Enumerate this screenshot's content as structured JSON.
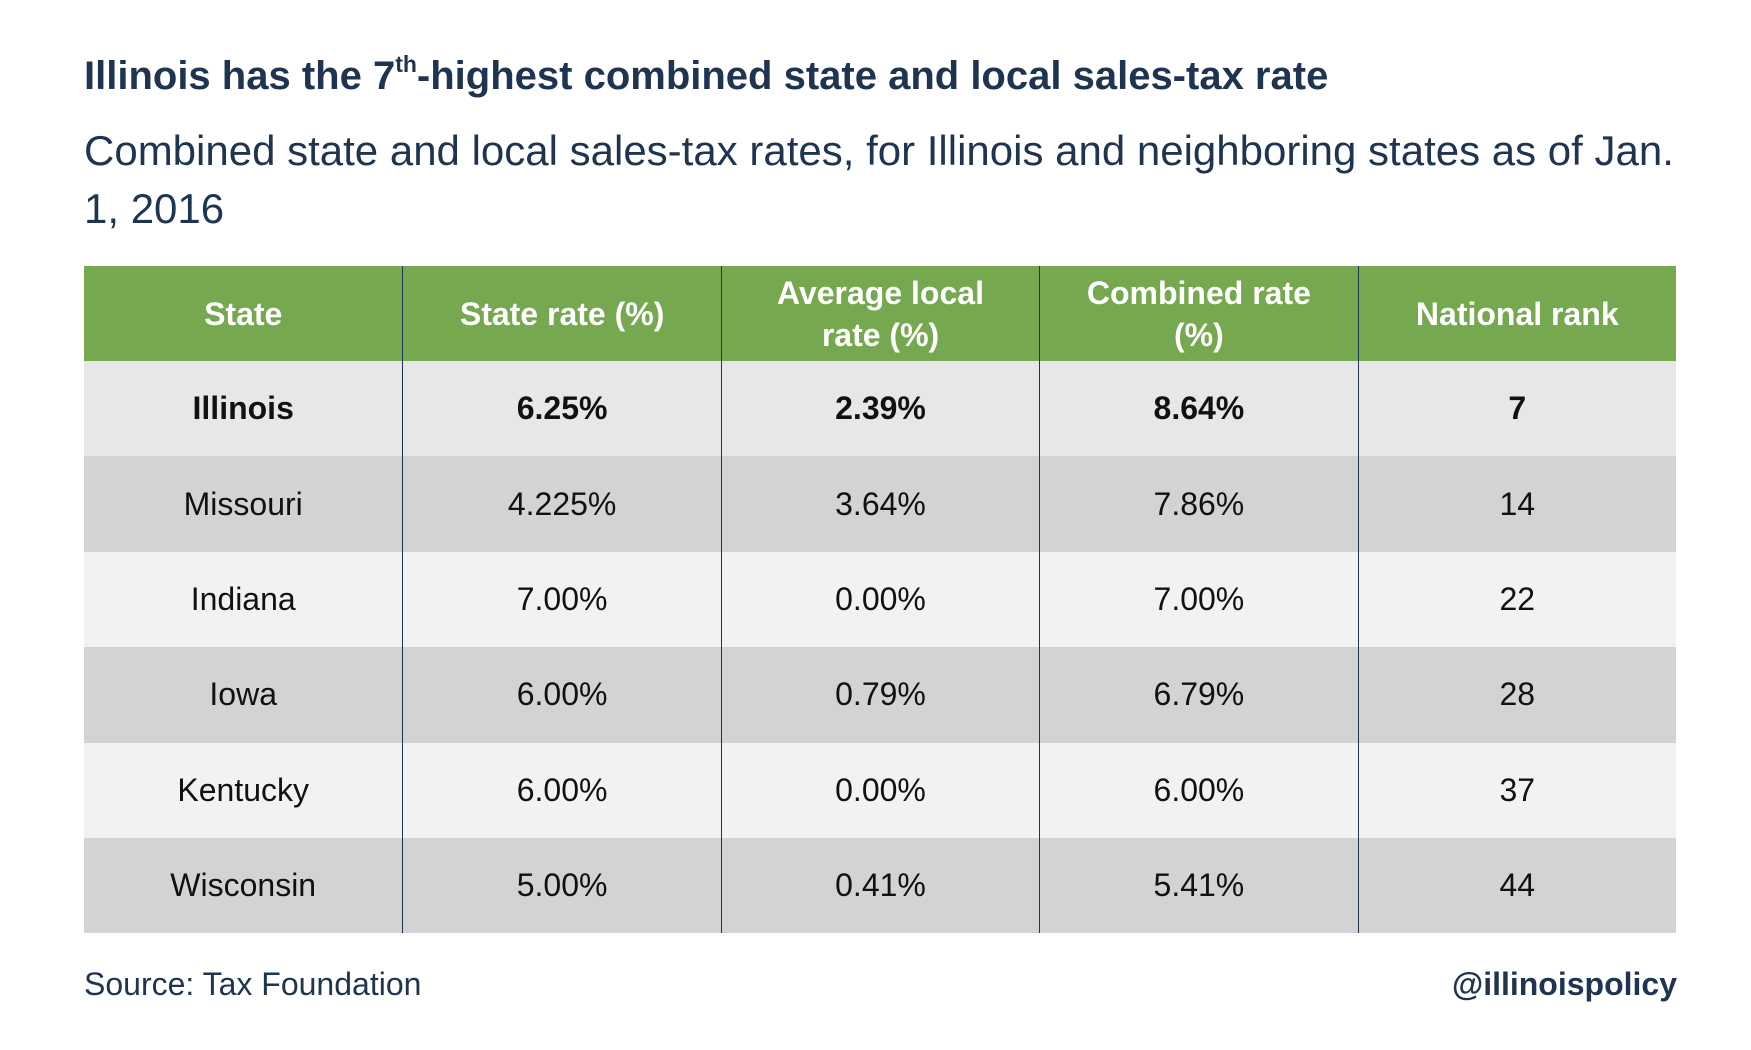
{
  "header": {
    "title": {
      "before": "Illinois has the 7",
      "superscript": "th",
      "after": "-highest combined state and local sales-tax rate"
    },
    "subtitle": "Combined state and local sales-tax rates, for Illinois and neighboring states as of Jan. 1, 2016"
  },
  "table": {
    "columns": [
      "State",
      "State rate (%)",
      "Average local rate (%)",
      "Combined rate (%)",
      "National rank"
    ],
    "rows": [
      [
        "Illinois",
        "6.25%",
        "2.39%",
        "8.64%",
        "7"
      ],
      [
        "Missouri",
        "4.225%",
        "3.64%",
        "7.86%",
        "14"
      ],
      [
        "Indiana",
        "7.00%",
        "0.00%",
        "7.00%",
        "22"
      ],
      [
        "Iowa",
        "6.00%",
        "0.79%",
        "6.79%",
        "28"
      ],
      [
        "Kentucky",
        "6.00%",
        "0.00%",
        "6.00%",
        "37"
      ],
      [
        "Wisconsin",
        "5.00%",
        "0.41%",
        "5.41%",
        "44"
      ]
    ]
  },
  "footer": {
    "source": "Source: Tax Foundation",
    "handle": "@illinoispolicy"
  }
}
